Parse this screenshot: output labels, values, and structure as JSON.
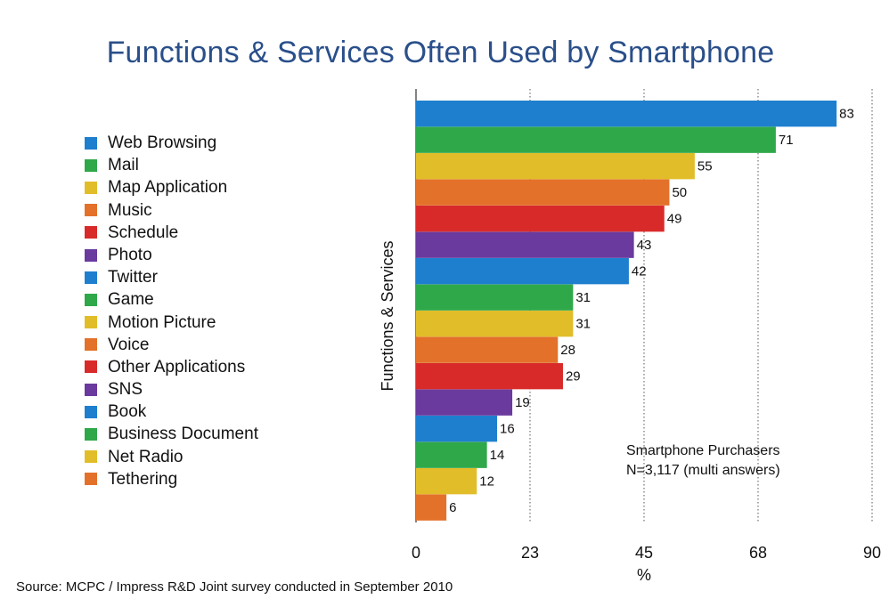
{
  "title": "Functions & Services Often Used by Smartphone",
  "source": "Source: MCPC / Impress R&D Joint survey conducted in September 2010",
  "annotation": [
    "Smartphone Purchasers",
    "N=3,117 (multi answers)"
  ],
  "colors": {
    "blue": "#1e7fcf",
    "green": "#2fa84a",
    "yellow": "#e2bd2a",
    "orange": "#e3712a",
    "red": "#d92a2a",
    "purple": "#6a3a9e"
  },
  "chart_data": {
    "type": "bar",
    "orientation": "horizontal",
    "categories": [
      "Web Browsing",
      "Mail",
      "Map Application",
      "Music",
      "Schedule",
      "Photo",
      "Twitter",
      "Game",
      "Motion Picture",
      "Voice",
      "Other Applications",
      "SNS",
      "Book",
      "Business Document",
      "Net Radio",
      "Tethering"
    ],
    "values": [
      83,
      71,
      55,
      50,
      49,
      43,
      42,
      31,
      31,
      28,
      29,
      19,
      16,
      14,
      12,
      6
    ],
    "bar_colors": [
      "blue",
      "green",
      "yellow",
      "orange",
      "red",
      "purple",
      "blue",
      "green",
      "yellow",
      "orange",
      "red",
      "purple",
      "blue",
      "green",
      "yellow",
      "orange"
    ],
    "xlabel": "%",
    "ylabel": "Functions & Services",
    "xlim": [
      0,
      90
    ],
    "xticks": [
      0,
      22.5,
      45,
      67.5,
      90
    ],
    "xtick_labels": [
      "0",
      "23",
      "45",
      "68",
      "90"
    ],
    "grid": "vertical dashed",
    "legend_position": "left"
  }
}
